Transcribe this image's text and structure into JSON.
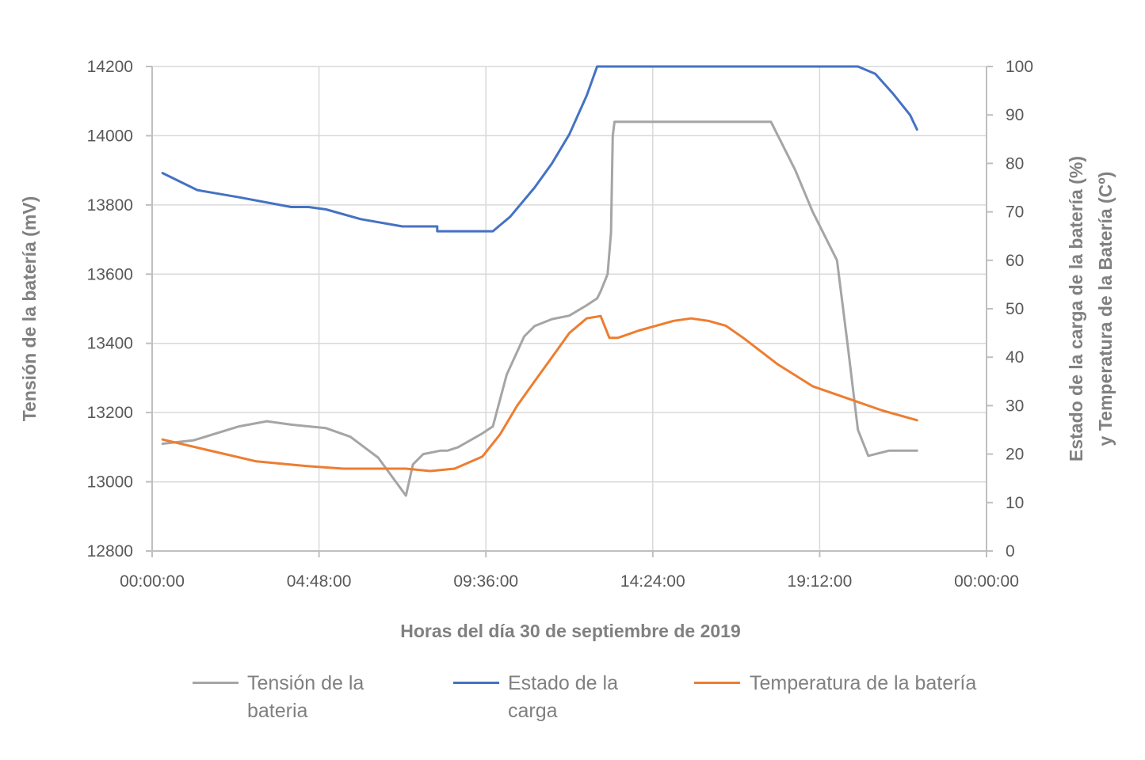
{
  "chart_data": {
    "type": "line",
    "title": "",
    "xlabel": "Horas del día 30 de septiembre de 2019",
    "ylabel_left": "Tensión de la batería (mV)",
    "ylabel_right": [
      "Estado de la carga de la batería (%)",
      "y Temperatura de la Batería (Cº)"
    ],
    "x_ticks": [
      "00:00:00",
      "04:48:00",
      "09:36:00",
      "14:24:00",
      "19:12:00",
      "00:00:00"
    ],
    "x_range_hours": [
      0,
      24
    ],
    "y_left_ticks": [
      "12800",
      "13000",
      "13200",
      "13400",
      "13600",
      "13800",
      "14000",
      "14200"
    ],
    "y_left_range": [
      12800,
      14200
    ],
    "y_right_ticks": [
      "0",
      "10",
      "20",
      "30",
      "40",
      "50",
      "60",
      "70",
      "80",
      "90",
      "100"
    ],
    "y_right_range": [
      0,
      100
    ],
    "grid": true,
    "legend_position": "bottom",
    "colors": {
      "tension": "#a5a5a5",
      "carga": "#4472c4",
      "temperatura": "#ed7d31"
    },
    "series": [
      {
        "name": "Tensión de la bateria",
        "axis": "left",
        "x_hours": [
          0.3,
          1.2,
          2.5,
          3.3,
          4.0,
          5.0,
          5.7,
          6.5,
          7.3,
          7.5,
          7.8,
          8.3,
          8.5,
          8.8,
          9.5,
          9.8,
          10.2,
          10.7,
          11.0,
          11.5,
          12.0,
          12.5,
          12.8,
          12.9,
          13.1,
          13.2,
          13.25,
          13.3,
          14.0,
          15.0,
          16.0,
          17.0,
          17.8,
          18.0,
          18.5,
          19.0,
          19.3,
          19.7,
          20.0,
          20.3,
          20.6,
          21.2,
          22.0
        ],
        "values": [
          13110,
          13120,
          13160,
          13175,
          13165,
          13155,
          13130,
          13070,
          12960,
          13050,
          13080,
          13090,
          13090,
          13100,
          13140,
          13160,
          13310,
          13420,
          13450,
          13470,
          13480,
          13510,
          13530,
          13550,
          13600,
          13720,
          14000,
          14040,
          14040,
          14040,
          14040,
          14040,
          14040,
          14000,
          13900,
          13780,
          13720,
          13640,
          13400,
          13150,
          13075,
          13090,
          13090
        ]
      },
      {
        "name": "Estado de la carga",
        "axis": "right",
        "x_hours": [
          0.3,
          1.3,
          2.5,
          4.0,
          4.5,
          5.0,
          6.0,
          7.2,
          8.2,
          8.2,
          9.8,
          10.3,
          11.0,
          11.5,
          12.0,
          12.5,
          12.8,
          15.0,
          18.0,
          19.5,
          20.3,
          20.8,
          21.3,
          21.8,
          22.0
        ],
        "values": [
          78,
          74.5,
          73,
          71,
          71,
          70.5,
          68.5,
          67,
          67,
          66,
          66,
          69,
          75,
          80,
          86,
          94,
          100,
          100,
          100,
          100,
          100,
          98.5,
          94.5,
          90,
          87
        ]
      },
      {
        "name": "Temperatura de la batería",
        "axis": "right",
        "x_hours": [
          0.3,
          1.5,
          3.0,
          4.5,
          5.5,
          6.5,
          7.3,
          8.0,
          8.7,
          9.5,
          10.0,
          10.5,
          11.0,
          11.5,
          12.0,
          12.5,
          12.9,
          13.15,
          13.4,
          13.6,
          14.0,
          14.5,
          15.0,
          15.5,
          16.0,
          16.5,
          17.0,
          18.0,
          19.0,
          20.0,
          21.0,
          22.0
        ],
        "values": [
          23,
          21,
          18.5,
          17.5,
          17,
          17,
          17,
          16.5,
          17,
          19.5,
          24,
          30,
          35,
          40,
          45,
          48,
          48.5,
          44,
          44,
          44.5,
          45.5,
          46.5,
          47.5,
          48,
          47.5,
          46.5,
          44,
          38.5,
          34,
          31.5,
          29,
          27
        ]
      }
    ]
  }
}
